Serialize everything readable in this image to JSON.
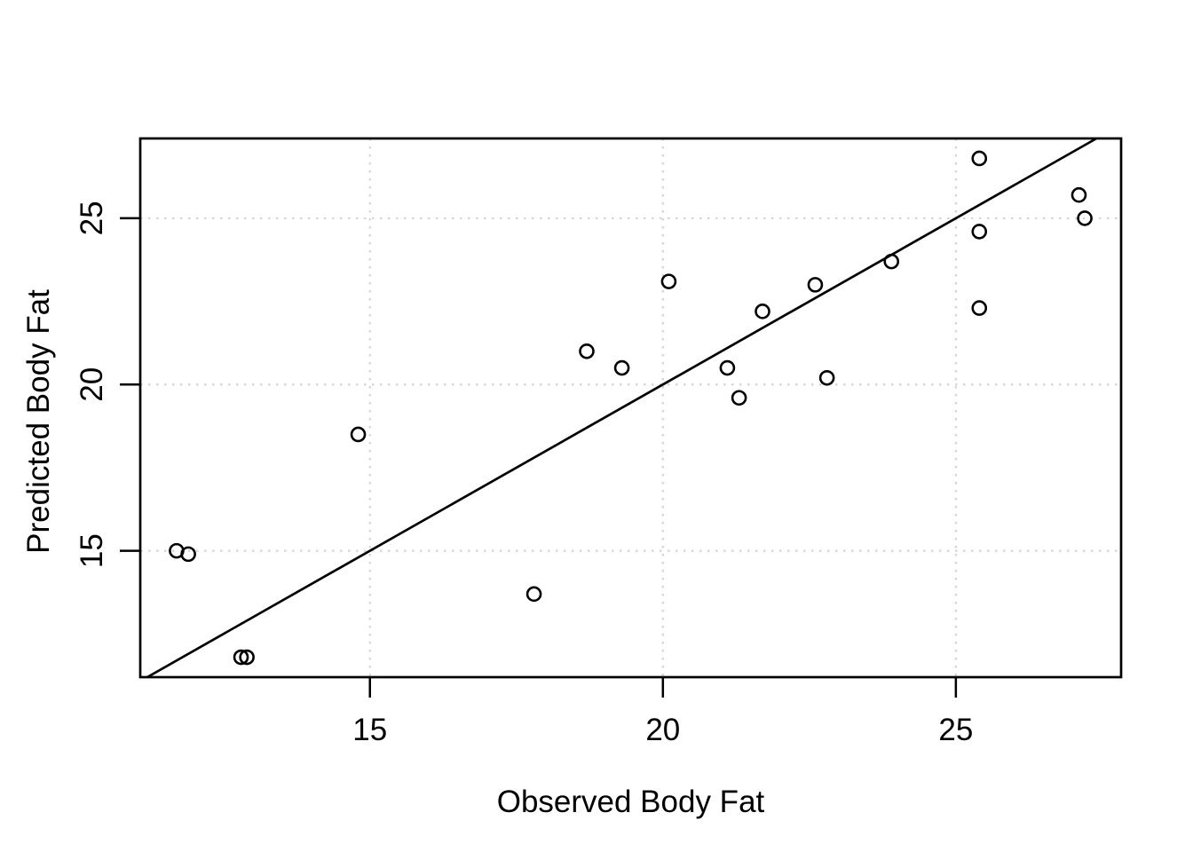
{
  "chart_data": {
    "type": "scatter",
    "title": "",
    "xlabel": "Observed Body Fat",
    "ylabel": "Predicted Body Fat",
    "x_ticks": [
      15,
      20,
      25
    ],
    "y_ticks": [
      15,
      20,
      25
    ],
    "xlim": [
      11.08,
      27.82
    ],
    "ylim": [
      11.2,
      27.4
    ],
    "grid": true,
    "grid_style": "dotted",
    "legend_position": "none",
    "marker": "open-circle",
    "reference_line": {
      "slope": 1,
      "intercept": 0,
      "meaning": "identity line y = x"
    },
    "points": [
      {
        "x": 11.7,
        "y": 15.0
      },
      {
        "x": 11.9,
        "y": 14.9
      },
      {
        "x": 12.8,
        "y": 11.8
      },
      {
        "x": 12.9,
        "y": 11.8
      },
      {
        "x": 14.8,
        "y": 18.5
      },
      {
        "x": 17.8,
        "y": 13.7
      },
      {
        "x": 18.7,
        "y": 21.0
      },
      {
        "x": 19.3,
        "y": 20.5
      },
      {
        "x": 20.1,
        "y": 23.1
      },
      {
        "x": 21.1,
        "y": 20.5
      },
      {
        "x": 21.3,
        "y": 19.6
      },
      {
        "x": 21.7,
        "y": 22.2
      },
      {
        "x": 22.6,
        "y": 23.0
      },
      {
        "x": 22.8,
        "y": 20.2
      },
      {
        "x": 23.9,
        "y": 23.7
      },
      {
        "x": 25.4,
        "y": 26.8
      },
      {
        "x": 25.4,
        "y": 24.6
      },
      {
        "x": 25.4,
        "y": 22.3
      },
      {
        "x": 27.1,
        "y": 25.7
      },
      {
        "x": 27.2,
        "y": 25.0
      }
    ],
    "colors": {
      "points": "#000000",
      "reference_line": "#000000",
      "grid": "#D4D4D4",
      "border": "#000000",
      "background": "#FFFFFF",
      "text": "#000000"
    }
  }
}
